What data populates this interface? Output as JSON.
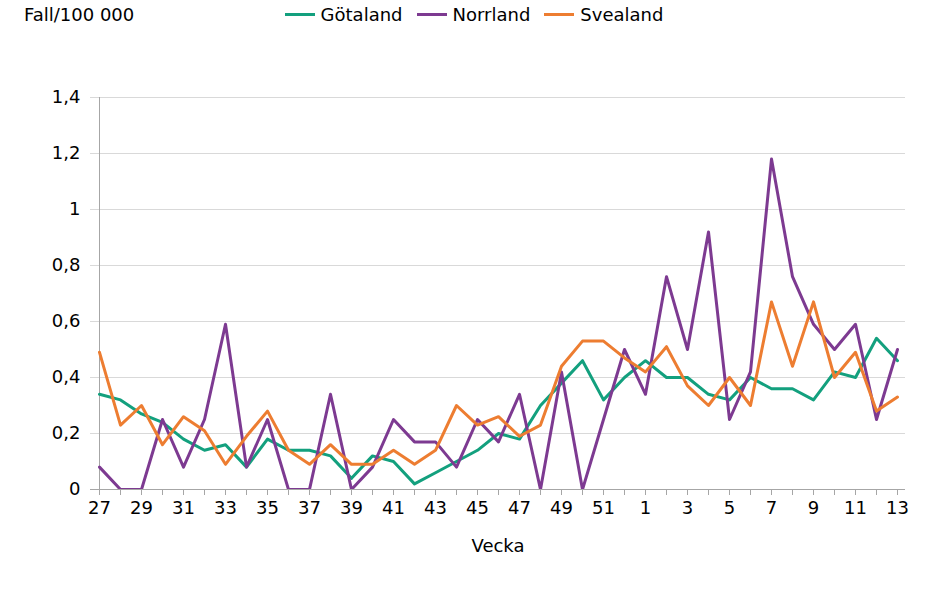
{
  "chart_data": {
    "type": "line",
    "y_label": "Fall/100 000",
    "x_label": "Vecka",
    "categories": [
      27,
      null,
      29,
      null,
      31,
      null,
      33,
      null,
      35,
      null,
      37,
      null,
      39,
      null,
      41,
      null,
      43,
      null,
      45,
      null,
      47,
      null,
      49,
      null,
      51,
      null,
      1,
      null,
      3,
      null,
      5,
      null,
      7,
      null,
      9,
      null,
      11,
      null,
      13
    ],
    "series": [
      {
        "name": "Götaland",
        "color": "#13a07e",
        "values": [
          0.34,
          0.32,
          0.27,
          0.24,
          0.18,
          0.14,
          0.16,
          0.08,
          0.18,
          0.14,
          0.14,
          0.12,
          0.04,
          0.12,
          0.1,
          0.02,
          0.06,
          0.1,
          0.14,
          0.2,
          0.18,
          0.3,
          0.38,
          0.46,
          0.32,
          0.4,
          0.46,
          0.4,
          0.4,
          0.34,
          0.32,
          0.4,
          0.36,
          0.36,
          0.32,
          0.42,
          0.4,
          0.54,
          0.46
        ]
      },
      {
        "name": "Norrland",
        "color": "#7d3a91",
        "values": [
          0.08,
          0,
          0,
          0.25,
          0.08,
          0.25,
          0.59,
          0.08,
          0.25,
          0,
          0,
          0.34,
          0,
          0.08,
          0.25,
          0.17,
          0.17,
          0.08,
          0.25,
          0.17,
          0.34,
          0,
          0.42,
          0,
          0.25,
          0.5,
          0.34,
          0.76,
          0.5,
          0.92,
          0.25,
          0.42,
          1.18,
          0.76,
          0.59,
          0.5,
          0.59,
          0.25,
          0.5
        ]
      },
      {
        "name": "Svealand",
        "color": "#ed7d31",
        "values": [
          0.49,
          0.23,
          0.3,
          0.16,
          0.26,
          0.21,
          0.09,
          0.19,
          0.28,
          0.14,
          0.09,
          0.16,
          0.09,
          0.09,
          0.14,
          0.09,
          0.14,
          0.3,
          0.23,
          0.26,
          0.19,
          0.23,
          0.44,
          0.53,
          0.53,
          0.47,
          0.42,
          0.51,
          0.37,
          0.3,
          0.4,
          0.3,
          0.67,
          0.44,
          0.67,
          0.4,
          0.49,
          0.28,
          0.33
        ]
      }
    ],
    "ylim": [
      0,
      1.4
    ],
    "yticks": [
      0,
      {
        "value": 0.2,
        "label": "0,2"
      },
      {
        "value": 0.4,
        "label": "0,4"
      },
      {
        "value": 0.6,
        "label": "0,6"
      },
      {
        "value": 0.8,
        "label": "0,8"
      },
      1,
      {
        "value": 1.2,
        "label": "1,2"
      },
      {
        "value": 1.4,
        "label": "1,4"
      }
    ],
    "grid": true,
    "legend": "top"
  }
}
